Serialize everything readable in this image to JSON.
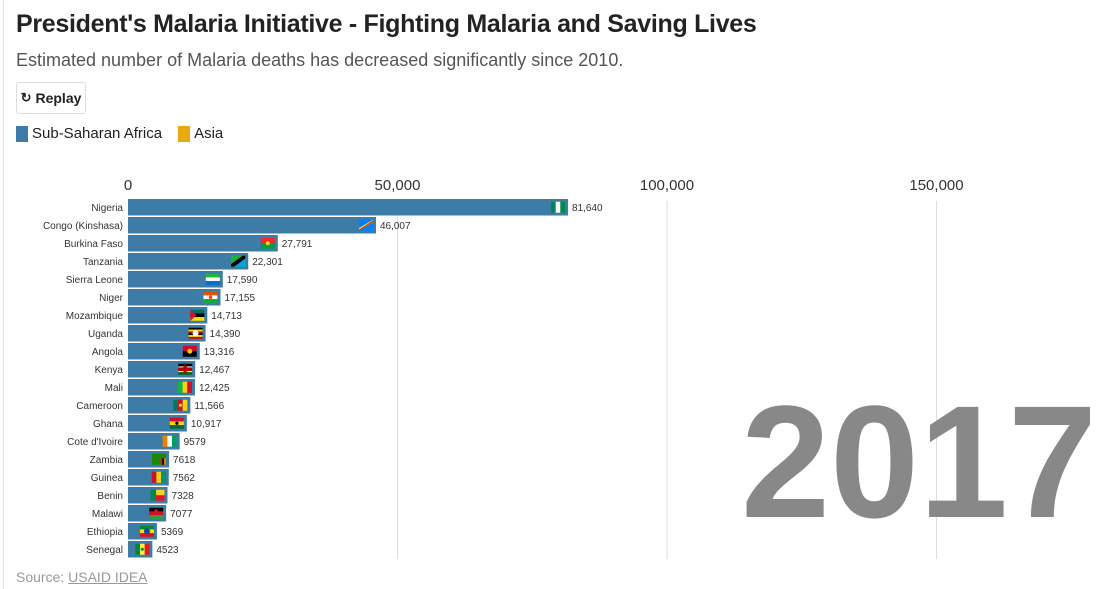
{
  "header": {
    "title": "President's Malaria Initiative - Fighting Malaria and Saving Lives",
    "subtitle": "Estimated number of Malaria deaths has decreased significantly since 2010."
  },
  "controls": {
    "replay_label": "Replay",
    "replay_icon": "replay-icon"
  },
  "legend": [
    {
      "label": "Sub-Saharan Africa",
      "color": "#3d7ca6"
    },
    {
      "label": "Asia",
      "color": "#e9aa10"
    }
  ],
  "source": {
    "prefix": "Source:",
    "link_text": "USAID IDEA"
  },
  "chart_data": {
    "type": "bar",
    "orientation": "horizontal",
    "year": "2017",
    "categories": [
      "Nigeria",
      "Congo (Kinshasa)",
      "Burkina Faso",
      "Tanzania",
      "Sierra Leone",
      "Niger",
      "Mozambique",
      "Uganda",
      "Angola",
      "Kenya",
      "Mali",
      "Cameroon",
      "Ghana",
      "Cote d'Ivoire",
      "Zambia",
      "Guinea",
      "Benin",
      "Malawi",
      "Ethiopia",
      "Senegal"
    ],
    "values": [
      81640,
      46007,
      27791,
      22301,
      17590,
      17155,
      14713,
      14390,
      13316,
      12467,
      12425,
      11566,
      10917,
      9579,
      7618,
      7562,
      7328,
      7077,
      5369,
      4523
    ],
    "value_labels": [
      "81,640",
      "46,007",
      "27,791",
      "22,301",
      "17,590",
      "17,155",
      "14,713",
      "14,390",
      "13,316",
      "12,467",
      "12,425",
      "11,566",
      "10,917",
      "9579",
      "7618",
      "7562",
      "7328",
      "7077",
      "5369",
      "4523"
    ],
    "regions": [
      "Sub-Saharan Africa",
      "Sub-Saharan Africa",
      "Sub-Saharan Africa",
      "Sub-Saharan Africa",
      "Sub-Saharan Africa",
      "Sub-Saharan Africa",
      "Sub-Saharan Africa",
      "Sub-Saharan Africa",
      "Sub-Saharan Africa",
      "Sub-Saharan Africa",
      "Sub-Saharan Africa",
      "Sub-Saharan Africa",
      "Sub-Saharan Africa",
      "Sub-Saharan Africa",
      "Sub-Saharan Africa",
      "Sub-Saharan Africa",
      "Sub-Saharan Africa",
      "Sub-Saharan Africa",
      "Sub-Saharan Africa",
      "Sub-Saharan Africa"
    ],
    "flag_icons": [
      "nigeria-flag-icon",
      "congo-kinshasa-flag-icon",
      "burkina-faso-flag-icon",
      "tanzania-flag-icon",
      "sierra-leone-flag-icon",
      "niger-flag-icon",
      "mozambique-flag-icon",
      "uganda-flag-icon",
      "angola-flag-icon",
      "kenya-flag-icon",
      "mali-flag-icon",
      "cameroon-flag-icon",
      "ghana-flag-icon",
      "cote-divoire-flag-icon",
      "zambia-flag-icon",
      "guinea-flag-icon",
      "benin-flag-icon",
      "malawi-flag-icon",
      "ethiopia-flag-icon",
      "senegal-flag-icon"
    ],
    "xticks": [
      0,
      50000,
      100000,
      150000
    ],
    "xtick_labels": [
      "0",
      "50,000",
      "100,000",
      "150,000"
    ],
    "xlim": [
      0,
      185000
    ],
    "grid": true,
    "legend_position": "top-left",
    "colors": {
      "Sub-Saharan Africa": "#3d7ca6",
      "Asia": "#e9aa10",
      "year_label": "#888888",
      "grid": "#dddddd"
    }
  }
}
